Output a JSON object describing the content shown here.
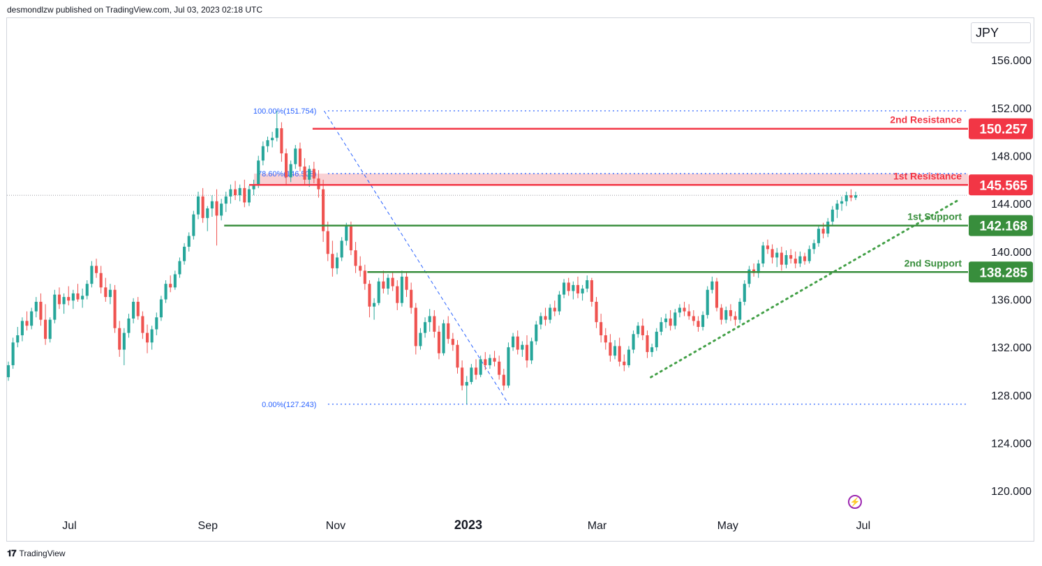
{
  "header": {
    "publisher_text": "desmondlzw published on TradingView.com, Jul 03, 2023 02:18 UTC"
  },
  "currency": "JPY",
  "footer": {
    "brand": "TradingView",
    "logo_icon": "tradingview-logo-icon"
  },
  "colors": {
    "up": "#26a69a",
    "down": "#ef5350",
    "resistance": "#f23645",
    "support": "#388e3c",
    "fib": "#2962ff",
    "zone": "#f8c9cc"
  },
  "chart_data": {
    "type": "candlestick",
    "y_ticks": [
      "156.000",
      "152.000",
      "148.000",
      "144.000",
      "140.000",
      "136.000",
      "132.000",
      "128.000",
      "124.000",
      "120.000"
    ],
    "ylim": [
      118.5,
      159.5
    ],
    "x_ticks": [
      {
        "label": "Jul",
        "bold": false,
        "t": 0.065
      },
      {
        "label": "Sep",
        "bold": false,
        "t": 0.209
      },
      {
        "label": "Nov",
        "bold": false,
        "t": 0.342
      },
      {
        "label": "2023",
        "bold": true,
        "t": 0.48
      },
      {
        "label": "Mar",
        "bold": false,
        "t": 0.614
      },
      {
        "label": "May",
        "bold": false,
        "t": 0.75
      },
      {
        "label": "Jul",
        "bold": false,
        "t": 0.891
      }
    ],
    "levels": [
      {
        "name": "2nd Resistance",
        "value": 150.257,
        "value_label": "150.257",
        "kind": "resistance",
        "t_start": 0.318
      },
      {
        "name": "1st Resistance",
        "value": 145.565,
        "value_label": "145.565",
        "kind": "resistance",
        "t_start": 0.252
      },
      {
        "name": "1st Support",
        "value": 142.168,
        "value_label": "142.168",
        "kind": "support",
        "t_start": 0.226
      },
      {
        "name": "2nd Support",
        "value": 138.285,
        "value_label": "138.285",
        "kind": "support",
        "t_start": 0.375
      }
    ],
    "resistance_zone": {
      "from": 145.565,
      "to": 146.508,
      "t_start": 0.257
    },
    "fibonacci": [
      {
        "label": "100.00%(151.754)",
        "value": 151.754
      },
      {
        "label": "78.60%(146.508)",
        "value": 146.508
      },
      {
        "label": "0.00%(127.243)",
        "value": 127.243
      }
    ],
    "fib_diagonal": {
      "from": {
        "t": 0.33,
        "value": 151.754
      },
      "to": {
        "t": 0.522,
        "value": 127.243
      }
    },
    "trendline": {
      "from": {
        "t": 0.67,
        "value": 129.5
      },
      "to": {
        "t": 0.99,
        "value": 144.3
      }
    },
    "last_price": 144.7,
    "candles": [
      [
        129.5,
        130.8,
        129.2,
        130.5
      ],
      [
        130.5,
        132.8,
        130.2,
        132.4
      ],
      [
        132.4,
        133.7,
        132.0,
        133.0
      ],
      [
        133.0,
        134.5,
        132.5,
        134.2
      ],
      [
        134.2,
        135.0,
        133.4,
        133.8
      ],
      [
        133.8,
        135.3,
        133.5,
        135.0
      ],
      [
        135.0,
        136.2,
        134.5,
        135.8
      ],
      [
        135.8,
        136.5,
        133.8,
        134.3
      ],
      [
        134.3,
        135.6,
        132.2,
        132.7
      ],
      [
        132.7,
        134.5,
        132.4,
        134.3
      ],
      [
        134.3,
        136.8,
        134.0,
        136.4
      ],
      [
        136.4,
        137.0,
        135.2,
        135.6
      ],
      [
        135.6,
        136.5,
        134.8,
        136.2
      ],
      [
        136.2,
        137.1,
        135.5,
        135.9
      ],
      [
        135.9,
        136.8,
        135.2,
        136.5
      ],
      [
        136.5,
        137.3,
        135.8,
        136.0
      ],
      [
        136.0,
        136.9,
        135.3,
        136.3
      ],
      [
        136.3,
        137.6,
        136.0,
        137.3
      ],
      [
        137.3,
        139.2,
        137.0,
        138.8
      ],
      [
        138.8,
        139.4,
        137.8,
        138.2
      ],
      [
        138.2,
        138.8,
        136.5,
        137.0
      ],
      [
        137.0,
        137.8,
        135.8,
        136.2
      ],
      [
        136.2,
        137.3,
        135.6,
        136.8
      ],
      [
        136.8,
        137.2,
        133.2,
        133.6
      ],
      [
        133.6,
        134.2,
        131.2,
        131.8
      ],
      [
        131.8,
        133.6,
        130.5,
        133.2
      ],
      [
        133.2,
        134.8,
        132.8,
        134.4
      ],
      [
        134.4,
        136.1,
        134.0,
        135.8
      ],
      [
        135.8,
        136.2,
        134.3,
        134.6
      ],
      [
        134.6,
        135.0,
        132.7,
        133.2
      ],
      [
        133.2,
        133.9,
        131.5,
        132.4
      ],
      [
        132.4,
        133.8,
        131.8,
        133.5
      ],
      [
        133.5,
        134.9,
        133.0,
        134.5
      ],
      [
        134.5,
        136.3,
        134.2,
        136.0
      ],
      [
        136.0,
        137.6,
        135.7,
        137.3
      ],
      [
        137.3,
        138.0,
        136.6,
        137.0
      ],
      [
        137.0,
        138.4,
        136.8,
        138.1
      ],
      [
        138.1,
        139.5,
        137.8,
        139.2
      ],
      [
        139.2,
        140.7,
        138.9,
        140.4
      ],
      [
        140.4,
        141.6,
        140.0,
        141.3
      ],
      [
        141.3,
        143.4,
        141.0,
        143.1
      ],
      [
        143.1,
        145.0,
        142.7,
        144.6
      ],
      [
        144.6,
        145.3,
        142.4,
        142.8
      ],
      [
        142.8,
        143.8,
        141.7,
        143.6
      ],
      [
        143.6,
        144.7,
        142.9,
        144.2
      ],
      [
        144.2,
        145.2,
        140.5,
        143.0
      ],
      [
        143.0,
        144.4,
        142.6,
        144.0
      ],
      [
        144.0,
        145.0,
        143.3,
        144.6
      ],
      [
        144.6,
        145.6,
        144.0,
        145.2
      ],
      [
        145.2,
        145.9,
        144.3,
        144.7
      ],
      [
        144.7,
        145.6,
        144.2,
        145.3
      ],
      [
        145.3,
        146.0,
        143.7,
        144.1
      ],
      [
        144.1,
        145.5,
        143.8,
        145.2
      ],
      [
        145.2,
        146.0,
        144.7,
        145.6
      ],
      [
        145.6,
        148.0,
        145.3,
        147.6
      ],
      [
        147.6,
        149.2,
        147.2,
        148.8
      ],
      [
        148.8,
        149.6,
        148.3,
        149.3
      ],
      [
        149.3,
        150.0,
        148.7,
        149.5
      ],
      [
        149.5,
        151.75,
        149.2,
        150.3
      ],
      [
        150.3,
        150.8,
        147.5,
        148.2
      ],
      [
        148.2,
        148.6,
        145.5,
        146.2
      ],
      [
        146.2,
        147.6,
        145.8,
        147.3
      ],
      [
        147.3,
        148.9,
        146.9,
        148.6
      ],
      [
        148.6,
        149.1,
        146.7,
        147.1
      ],
      [
        147.1,
        147.8,
        145.6,
        146.0
      ],
      [
        146.0,
        147.2,
        145.4,
        146.9
      ],
      [
        146.9,
        147.5,
        145.7,
        146.1
      ],
      [
        146.1,
        146.8,
        144.5,
        145.2
      ],
      [
        145.2,
        146.0,
        140.8,
        141.7
      ],
      [
        141.7,
        142.5,
        139.2,
        139.8
      ],
      [
        139.8,
        140.9,
        137.9,
        138.6
      ],
      [
        138.6,
        139.9,
        138.1,
        139.5
      ],
      [
        139.5,
        141.2,
        139.2,
        140.9
      ],
      [
        140.9,
        142.4,
        140.5,
        142.1
      ],
      [
        142.1,
        142.5,
        139.7,
        140.1
      ],
      [
        140.1,
        140.8,
        138.2,
        138.8
      ],
      [
        138.8,
        139.6,
        137.9,
        138.4
      ],
      [
        138.4,
        138.9,
        136.8,
        137.3
      ],
      [
        137.3,
        137.6,
        134.5,
        135.4
      ],
      [
        135.4,
        136.1,
        134.3,
        135.7
      ],
      [
        135.7,
        137.8,
        135.5,
        137.5
      ],
      [
        137.5,
        138.4,
        136.5,
        136.9
      ],
      [
        136.9,
        138.1,
        136.4,
        137.8
      ],
      [
        137.8,
        138.3,
        136.7,
        137.1
      ],
      [
        137.1,
        137.6,
        135.1,
        135.7
      ],
      [
        135.7,
        138.4,
        135.4,
        137.9
      ],
      [
        137.9,
        138.3,
        136.2,
        136.8
      ],
      [
        136.8,
        137.4,
        134.8,
        135.3
      ],
      [
        135.3,
        135.7,
        131.4,
        132.1
      ],
      [
        132.1,
        133.6,
        131.8,
        133.2
      ],
      [
        133.2,
        134.5,
        132.8,
        134.1
      ],
      [
        134.1,
        135.2,
        133.3,
        134.6
      ],
      [
        134.6,
        135.1,
        132.8,
        133.3
      ],
      [
        133.3,
        133.8,
        131.0,
        131.5
      ],
      [
        131.5,
        134.3,
        131.3,
        134.0
      ],
      [
        134.0,
        134.6,
        132.3,
        132.7
      ],
      [
        132.7,
        133.2,
        131.7,
        132.2
      ],
      [
        132.2,
        132.6,
        129.8,
        130.3
      ],
      [
        130.3,
        130.9,
        128.4,
        128.8
      ],
      [
        128.8,
        129.6,
        127.24,
        129.1
      ],
      [
        129.1,
        130.6,
        128.9,
        130.3
      ],
      [
        130.3,
        131.0,
        129.3,
        129.7
      ],
      [
        129.7,
        131.3,
        129.5,
        131.0
      ],
      [
        131.0,
        131.6,
        130.1,
        130.5
      ],
      [
        130.5,
        131.4,
        130.2,
        131.1
      ],
      [
        131.1,
        131.7,
        130.4,
        130.8
      ],
      [
        130.8,
        131.3,
        129.3,
        129.7
      ],
      [
        129.7,
        130.2,
        128.4,
        128.8
      ],
      [
        128.8,
        132.4,
        128.6,
        132.0
      ],
      [
        132.0,
        133.2,
        131.7,
        132.9
      ],
      [
        132.9,
        133.4,
        131.4,
        131.8
      ],
      [
        131.8,
        132.5,
        131.2,
        132.2
      ],
      [
        132.2,
        133.0,
        130.3,
        130.9
      ],
      [
        130.9,
        132.8,
        130.6,
        132.5
      ],
      [
        132.5,
        134.2,
        132.2,
        133.9
      ],
      [
        133.9,
        134.9,
        133.5,
        134.6
      ],
      [
        134.6,
        135.3,
        133.8,
        134.3
      ],
      [
        134.3,
        135.6,
        134.0,
        135.3
      ],
      [
        135.3,
        135.9,
        134.6,
        135.0
      ],
      [
        135.0,
        136.7,
        134.7,
        136.4
      ],
      [
        136.4,
        137.7,
        136.1,
        137.4
      ],
      [
        137.4,
        137.8,
        136.3,
        136.7
      ],
      [
        136.7,
        137.5,
        136.0,
        137.2
      ],
      [
        137.2,
        137.9,
        136.1,
        136.5
      ],
      [
        136.5,
        137.2,
        135.9,
        136.9
      ],
      [
        136.9,
        138.0,
        136.6,
        137.6
      ],
      [
        137.6,
        137.8,
        135.4,
        135.8
      ],
      [
        135.8,
        136.2,
        133.6,
        134.1
      ],
      [
        134.1,
        134.8,
        132.4,
        133.0
      ],
      [
        133.0,
        133.6,
        131.8,
        132.4
      ],
      [
        132.4,
        133.1,
        130.8,
        131.3
      ],
      [
        131.3,
        132.6,
        131.0,
        132.1
      ],
      [
        132.1,
        132.8,
        130.4,
        130.8
      ],
      [
        130.8,
        131.4,
        130.0,
        130.5
      ],
      [
        130.5,
        132.1,
        130.3,
        131.8
      ],
      [
        131.8,
        133.4,
        131.5,
        133.1
      ],
      [
        133.1,
        134.1,
        132.8,
        133.8
      ],
      [
        133.8,
        134.4,
        132.6,
        133.0
      ],
      [
        133.0,
        133.4,
        131.1,
        131.6
      ],
      [
        131.6,
        132.3,
        131.2,
        132.0
      ],
      [
        132.0,
        133.6,
        131.7,
        133.3
      ],
      [
        133.3,
        134.5,
        133.0,
        134.1
      ],
      [
        134.1,
        134.8,
        133.6,
        134.4
      ],
      [
        134.4,
        135.1,
        133.4,
        133.8
      ],
      [
        133.8,
        135.2,
        133.5,
        134.9
      ],
      [
        134.9,
        135.6,
        134.5,
        135.3
      ],
      [
        135.3,
        135.8,
        134.6,
        135.0
      ],
      [
        135.0,
        135.6,
        134.3,
        134.6
      ],
      [
        134.6,
        135.1,
        133.8,
        134.2
      ],
      [
        134.2,
        134.6,
        133.3,
        133.7
      ],
      [
        133.7,
        135.0,
        133.4,
        134.7
      ],
      [
        134.7,
        137.1,
        134.4,
        136.8
      ],
      [
        136.8,
        137.9,
        136.5,
        137.5
      ],
      [
        137.5,
        137.8,
        135.0,
        135.3
      ],
      [
        135.3,
        135.6,
        133.9,
        134.3
      ],
      [
        134.3,
        135.4,
        134.0,
        135.1
      ],
      [
        135.1,
        135.6,
        134.2,
        134.6
      ],
      [
        134.6,
        135.0,
        133.8,
        134.3
      ],
      [
        134.3,
        136.1,
        134.0,
        135.8
      ],
      [
        135.8,
        137.6,
        135.5,
        137.3
      ],
      [
        137.3,
        138.8,
        137.0,
        138.5
      ],
      [
        138.5,
        139.0,
        137.9,
        138.2
      ],
      [
        138.2,
        139.3,
        137.8,
        139.0
      ],
      [
        139.0,
        140.8,
        138.7,
        140.5
      ],
      [
        140.5,
        141.0,
        139.8,
        140.2
      ],
      [
        140.2,
        140.6,
        139.0,
        139.5
      ],
      [
        139.5,
        140.3,
        138.7,
        139.9
      ],
      [
        139.9,
        140.4,
        138.4,
        138.9
      ],
      [
        138.9,
        140.1,
        138.6,
        139.7
      ],
      [
        139.7,
        140.2,
        139.0,
        139.4
      ],
      [
        139.4,
        140.0,
        138.6,
        139.0
      ],
      [
        139.0,
        140.0,
        138.7,
        139.6
      ],
      [
        139.6,
        139.9,
        138.9,
        139.2
      ],
      [
        139.2,
        140.5,
        139.0,
        140.2
      ],
      [
        140.2,
        141.0,
        139.8,
        140.7
      ],
      [
        140.7,
        142.2,
        140.4,
        141.9
      ],
      [
        141.9,
        142.4,
        141.1,
        141.5
      ],
      [
        141.5,
        142.8,
        141.2,
        142.5
      ],
      [
        142.5,
        143.8,
        142.2,
        143.5
      ],
      [
        143.5,
        144.3,
        142.8,
        144.0
      ],
      [
        144.0,
        144.6,
        143.4,
        144.2
      ],
      [
        144.2,
        145.0,
        143.8,
        144.7
      ],
      [
        144.7,
        145.2,
        144.2,
        144.5
      ],
      [
        144.5,
        145.0,
        144.3,
        144.7
      ]
    ]
  }
}
